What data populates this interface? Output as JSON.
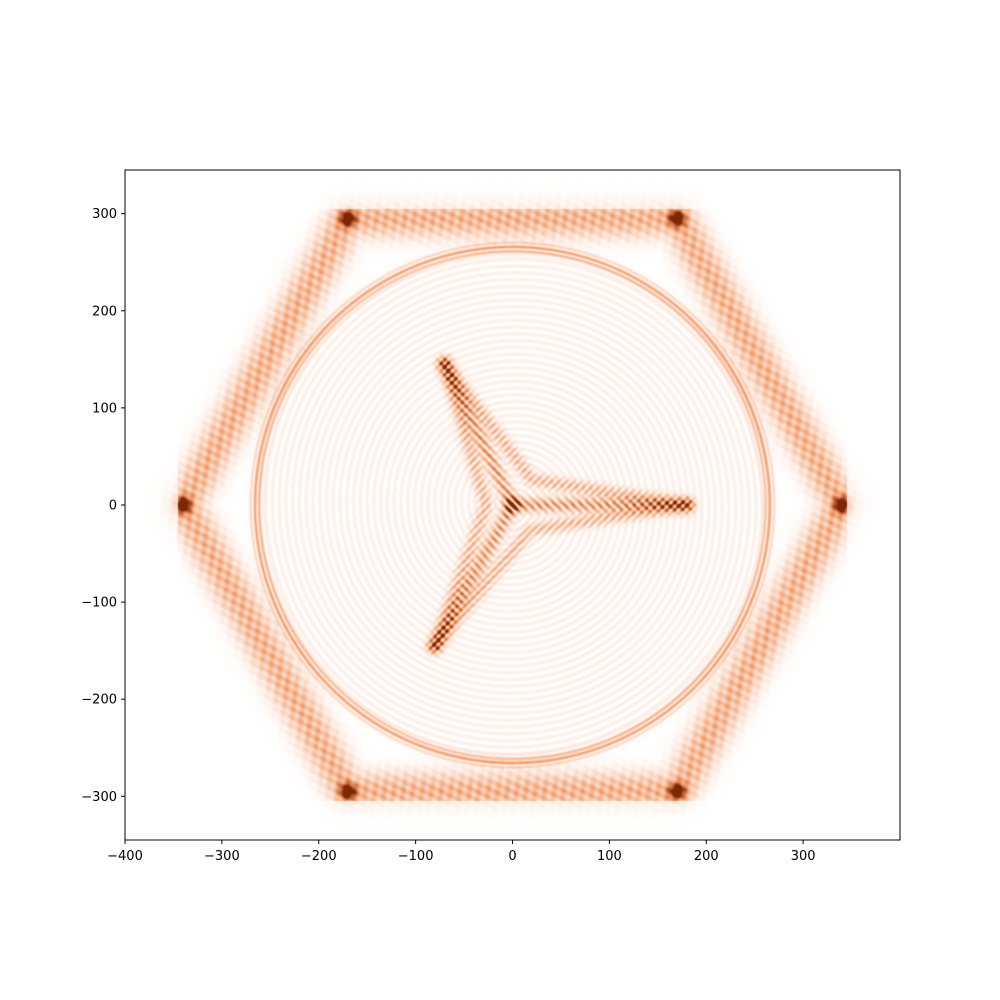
{
  "chart_data": {
    "type": "heatmap",
    "title": "",
    "xlabel": "",
    "ylabel": "",
    "xlim": [
      -400,
      400
    ],
    "ylim": [
      -345,
      345
    ],
    "x_ticks": [
      -400,
      -300,
      -200,
      -100,
      0,
      100,
      200,
      300
    ],
    "y_ticks": [
      -300,
      -200,
      -100,
      0,
      100,
      200,
      300
    ],
    "x_tick_labels": [
      "−400",
      "−300",
      "−200",
      "−100",
      "0",
      "100",
      "200",
      "300"
    ],
    "y_tick_labels": [
      "−300",
      "−200",
      "−100",
      "0",
      "100",
      "200",
      "300"
    ],
    "colormap": "Oranges",
    "colors": {
      "low": "#ffffff",
      "mid": "#f4a070",
      "high": "#7f2704"
    },
    "grid": false,
    "pattern": {
      "hexagon_vertices": [
        [
          340,
          0
        ],
        [
          170,
          295
        ],
        [
          -170,
          295
        ],
        [
          -340,
          0
        ],
        [
          -170,
          -295
        ],
        [
          170,
          -295
        ]
      ],
      "hexagon_value": 0.55,
      "corner_hotspot_value": 1.0,
      "ring_radius": 265,
      "ring_value": 0.5,
      "caustic_center": [
        0,
        0
      ],
      "caustic_tips": [
        [
          180,
          0
        ],
        [
          -70,
          145
        ],
        [
          -80,
          -145
        ]
      ],
      "caustic_value": 0.6
    }
  }
}
